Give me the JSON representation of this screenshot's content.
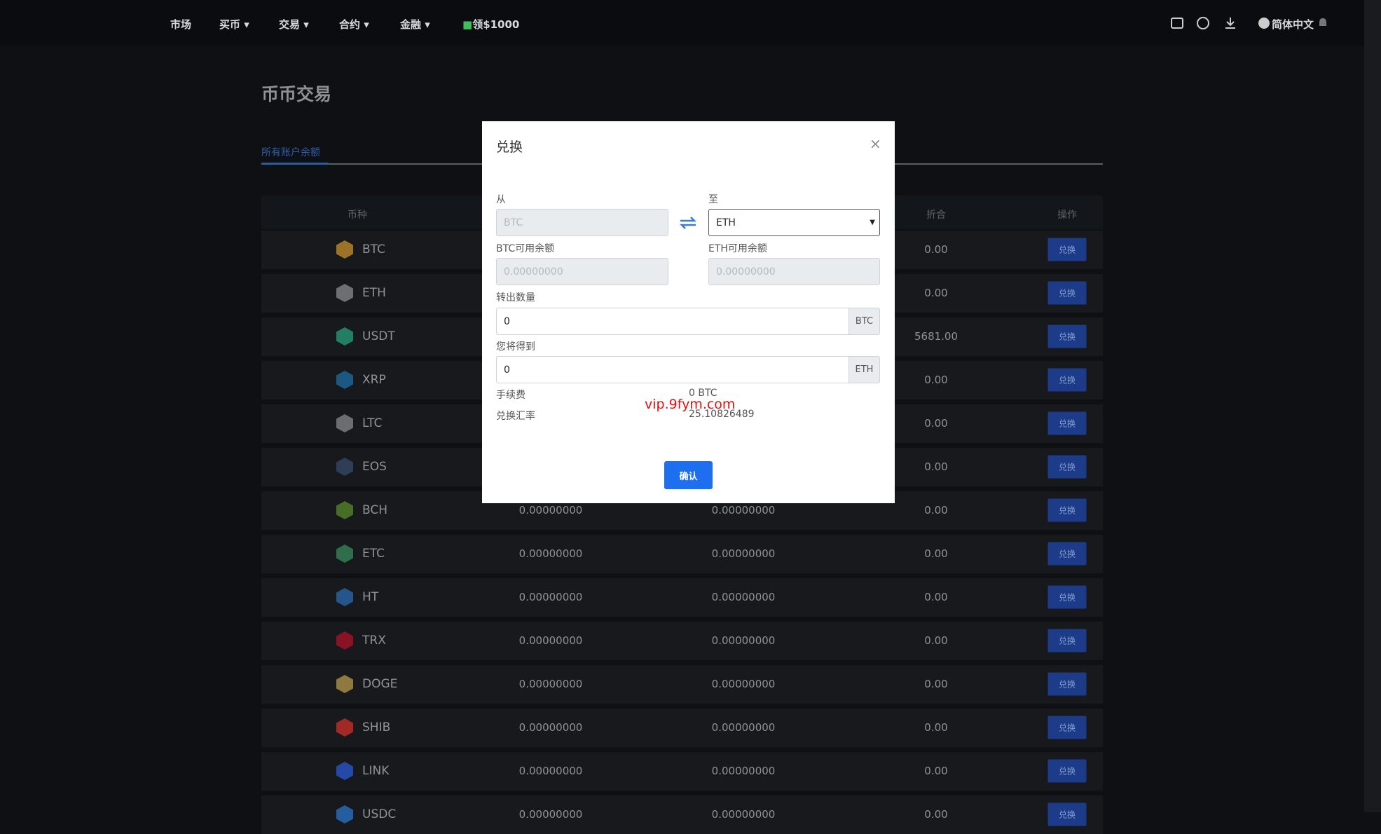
{
  "nav": {
    "items": [
      "市场",
      "买币",
      "交易",
      "合约",
      "金融"
    ],
    "promo": "领$1000",
    "language": "简体中文"
  },
  "page": {
    "title": "币币交易",
    "tab": "所有账户余额"
  },
  "table": {
    "headers": {
      "coin": "币种",
      "value": "折合",
      "action": "操作"
    },
    "rows": [
      {
        "coin": "BTC",
        "value": "0.00",
        "action": "兑换"
      },
      {
        "coin": "ETH",
        "value": "0.00",
        "action": "兑换"
      },
      {
        "coin": "USDT",
        "value": "5681.00",
        "action": "兑换"
      },
      {
        "coin": "XRP",
        "value": "0.00",
        "action": "兑换"
      },
      {
        "coin": "LTC",
        "value": "0.00",
        "action": "兑换"
      },
      {
        "coin": "EOS",
        "value": "0.00",
        "action": "兑换"
      },
      {
        "coin": "BCH",
        "available": "0.00000000",
        "frozen": "0.00000000",
        "value": "0.00",
        "action": "兑换"
      },
      {
        "coin": "ETC",
        "available": "0.00000000",
        "frozen": "0.00000000",
        "value": "0.00",
        "action": "兑换"
      },
      {
        "coin": "HT",
        "available": "0.00000000",
        "frozen": "0.00000000",
        "value": "0.00",
        "action": "兑换"
      },
      {
        "coin": "TRX",
        "available": "0.00000000",
        "frozen": "0.00000000",
        "value": "0.00",
        "action": "兑换"
      },
      {
        "coin": "DOGE",
        "available": "0.00000000",
        "frozen": "0.00000000",
        "value": "0.00",
        "action": "兑换"
      },
      {
        "coin": "SHIB",
        "available": "0.00000000",
        "frozen": "0.00000000",
        "value": "0.00",
        "action": "兑换"
      },
      {
        "coin": "LINK",
        "available": "0.00000000",
        "frozen": "0.00000000",
        "value": "0.00",
        "action": "兑换"
      },
      {
        "coin": "USDC",
        "available": "0.00000000",
        "frozen": "0.00000000",
        "value": "0.00",
        "action": "兑换"
      }
    ]
  },
  "modal": {
    "title": "兑换",
    "from_label": "从",
    "to_label": "至",
    "from_coin": "BTC",
    "to_coin": "ETH",
    "from_balance_label": "BTC可用余额",
    "to_balance_label": "ETH可用余额",
    "from_balance": "0.00000000",
    "to_balance": "0.00000000",
    "amount_label": "转出数量",
    "amount": "0",
    "amount_unit": "BTC",
    "receive_label": "您将得到",
    "receive": "0",
    "receive_unit": "ETH",
    "fee_label": "手续费",
    "fee": "0 BTC",
    "rate_label": "兑换汇率",
    "rate": "25.10826489",
    "confirm": "确认",
    "watermark": "vip.9fym.com"
  }
}
